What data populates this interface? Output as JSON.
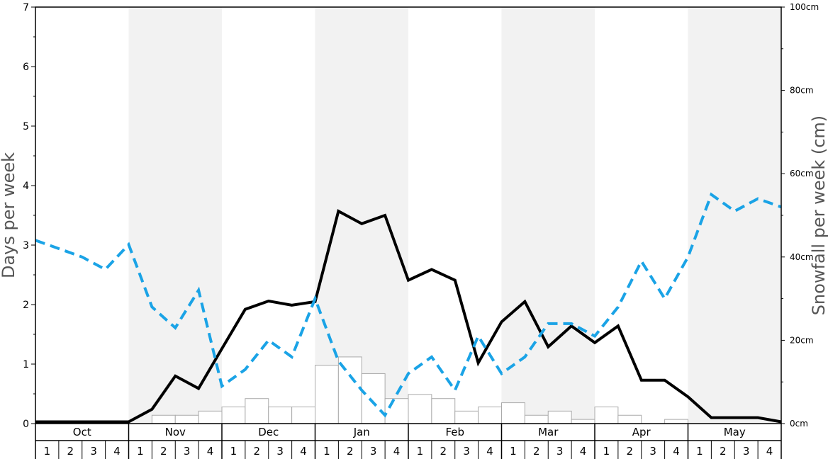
{
  "chart_data": {
    "type": "bar",
    "left_axis": {
      "title": "Days per week",
      "ylim": [
        0,
        7
      ],
      "ticks": [
        "0",
        "1",
        "2",
        "3",
        "4",
        "5",
        "6",
        "7"
      ]
    },
    "right_axis": {
      "title": "Snowfall per week (cm)",
      "ylim": [
        0,
        100
      ],
      "ticks": [
        "0cm",
        "20cm",
        "40cm",
        "60cm",
        "80cm",
        "100cm"
      ]
    },
    "months": [
      "Oct",
      "Nov",
      "Dec",
      "Jan",
      "Feb",
      "Mar",
      "Apr",
      "May"
    ],
    "weeks": [
      "1",
      "2",
      "3",
      "4"
    ],
    "shaded_months": [
      "Nov",
      "Jan",
      "Mar",
      "May"
    ],
    "colors": {
      "shade": "#f2f2f2",
      "bars": "#ffffff",
      "bar_stroke": "#aaaaaa",
      "solid_line": "#000000",
      "dashed_line": "#1aa3e6"
    },
    "series": [
      {
        "type": "bar",
        "axis": "right",
        "values": [
          0,
          0,
          0,
          0,
          0,
          2,
          2,
          3,
          4,
          6,
          4,
          4,
          14,
          16,
          12,
          6,
          7,
          6,
          3,
          4,
          5,
          2,
          3,
          1,
          4,
          2,
          0,
          1,
          0,
          0,
          0,
          0
        ]
      },
      {
        "type": "line",
        "style": "solid",
        "axis": "left",
        "values": [
          0.03,
          0.03,
          0.03,
          0.03,
          0.03,
          0.24,
          0.8,
          0.59,
          1.26,
          1.92,
          2.06,
          1.99,
          2.05,
          3.57,
          3.36,
          3.5,
          2.41,
          2.59,
          2.41,
          1.02,
          1.71,
          2.05,
          1.29,
          1.64,
          1.36,
          1.64,
          0.73,
          0.73,
          0.45,
          0.1,
          0.1,
          0.1,
          0.03
        ]
      },
      {
        "type": "line",
        "style": "dashed",
        "axis": "right",
        "values": [
          44,
          42,
          40,
          37,
          43,
          28,
          23,
          32,
          9,
          13,
          20,
          16,
          30,
          15,
          8,
          2,
          12,
          16,
          8,
          21,
          12,
          16,
          24,
          24,
          21,
          28,
          39,
          30,
          40,
          55,
          51,
          54,
          52
        ]
      }
    ]
  }
}
